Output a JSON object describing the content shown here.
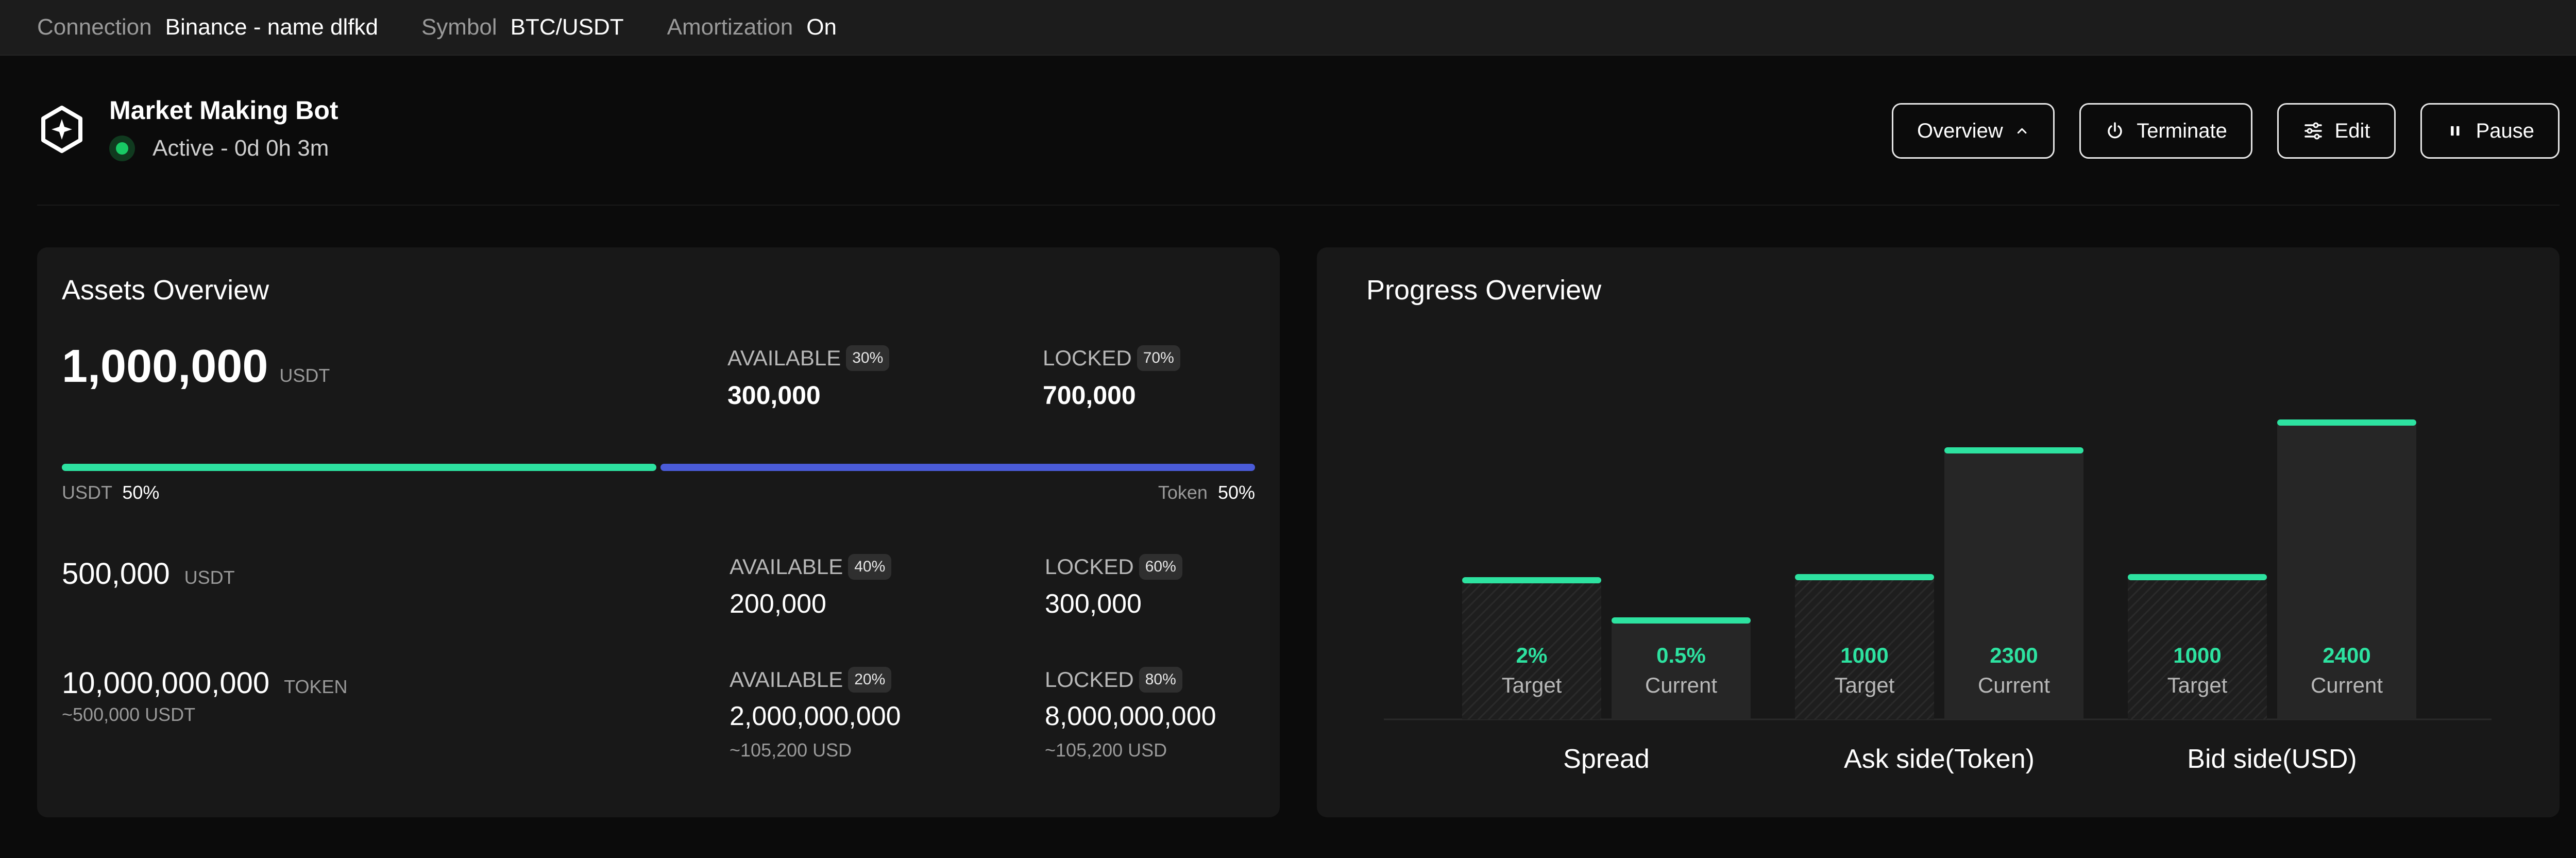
{
  "topbar": {
    "connection_label": "Connection",
    "connection_value": "Binance - name dlfkd",
    "symbol_label": "Symbol",
    "symbol_value": "BTC/USDT",
    "amortization_label": "Amortization",
    "amortization_value": "On"
  },
  "bot": {
    "title": "Market Making Bot",
    "status": "Active - 0d 0h 3m",
    "status_color": "#18c964"
  },
  "actions": {
    "overview": "Overview",
    "terminate": "Terminate",
    "edit": "Edit",
    "pause": "Pause"
  },
  "assets": {
    "title": "Assets Overview",
    "total": {
      "value": "1,000,000",
      "unit": "USDT",
      "available_label": "AVAILABLE",
      "available_pct": "30%",
      "available_value": "300,000",
      "locked_label": "LOCKED",
      "locked_pct": "70%",
      "locked_value": "700,000"
    },
    "split": {
      "left_label": "USDT",
      "left_pct": "50%",
      "right_label": "Token",
      "right_pct": "50%",
      "left_fraction": 0.5,
      "left_color": "#2de2a0",
      "right_color": "#4a5bd8"
    },
    "usdt": {
      "value": "500,000",
      "unit": "USDT",
      "available_label": "AVAILABLE",
      "available_pct": "40%",
      "available_value": "200,000",
      "locked_label": "LOCKED",
      "locked_pct": "60%",
      "locked_value": "300,000"
    },
    "token": {
      "value": "10,000,000,000",
      "unit": "TOKEN",
      "approx": "~500,000 USDT",
      "available_label": "AVAILABLE",
      "available_pct": "20%",
      "available_value": "2,000,000,000",
      "available_approx": "~105,200 USD",
      "locked_label": "LOCKED",
      "locked_pct": "80%",
      "locked_value": "8,000,000,000",
      "locked_approx": "~105,200 USD"
    }
  },
  "progress": {
    "title": "Progress Overview"
  },
  "chart_data": {
    "type": "bar",
    "categories": [
      "Spread",
      "Ask side(Token)",
      "Bid side(USD)"
    ],
    "series": [
      {
        "name": "Target",
        "labels": [
          "2%",
          "1000",
          "1000"
        ],
        "heights": [
          0.45,
          0.46,
          0.46
        ]
      },
      {
        "name": "Current",
        "labels": [
          "0.5%",
          "2300",
          "2400"
        ],
        "heights": [
          0.32,
          0.87,
          0.96
        ]
      }
    ],
    "accent": "#2de2a0",
    "grid": false
  }
}
